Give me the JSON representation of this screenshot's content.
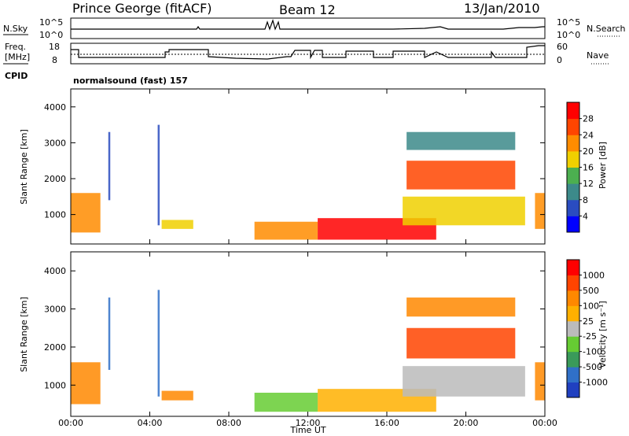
{
  "header": {
    "station": "Prince George (fitACF)",
    "beam": "Beam 12",
    "date": "13/Jan/2010"
  },
  "strip_labels": {
    "nsky": "N.Sky",
    "nsearch": "N.Search",
    "freq_line1": "Freq.",
    "freq_line2": "[MHz]",
    "nave": "Nave",
    "cpid": "CPID",
    "cpid_value": "normalsound (fast) 157",
    "nsky_ticks": [
      "10^5",
      "10^0"
    ],
    "nsearch_ticks": [
      "10^5",
      "10^0"
    ],
    "freq_ticks": [
      "18",
      "8"
    ],
    "nave_ticks": [
      "60",
      "0"
    ]
  },
  "colors": {
    "power": [
      "#0000ff",
      "#2a4cc0",
      "#3c8a8a",
      "#4caf50",
      "#f0d000",
      "#ff8c00",
      "#ff4500",
      "#ff0000"
    ],
    "velocity": [
      "#2040c0",
      "#3070c8",
      "#3a9a5a",
      "#66cc33",
      "#bbbbbb",
      "#ffb000",
      "#ff8800",
      "#ff4400",
      "#ff0000"
    ]
  },
  "chart_data": [
    {
      "type": "heatmap",
      "name": "power",
      "ylabel": "Slant Range [km]",
      "xlabel": "",
      "x_ticks": [
        "00:00",
        "04:00",
        "08:00",
        "12:00",
        "16:00",
        "20:00",
        "00:00"
      ],
      "y_ticks": [
        1000,
        2000,
        3000,
        4000
      ],
      "ylim": [
        180,
        4500
      ],
      "xlim": [
        0,
        24
      ],
      "colorbar_label": "Power [dB]",
      "colorbar_ticks": [
        "28",
        "24",
        "20",
        "16",
        "12",
        "8",
        "4"
      ],
      "regions": [
        {
          "t0": 0.0,
          "t1": 1.5,
          "r0": 500,
          "r1": 1600,
          "level": 5
        },
        {
          "t0": 1.9,
          "t1": 2.0,
          "r0": 1400,
          "r1": 3300,
          "level": 1
        },
        {
          "t0": 4.4,
          "t1": 4.5,
          "r0": 700,
          "r1": 3500,
          "level": 1
        },
        {
          "t0": 4.6,
          "t1": 6.2,
          "r0": 600,
          "r1": 850,
          "level": 4
        },
        {
          "t0": 9.3,
          "t1": 12.5,
          "r0": 300,
          "r1": 800,
          "level": 5
        },
        {
          "t0": 12.5,
          "t1": 18.5,
          "r0": 300,
          "r1": 900,
          "level": 7
        },
        {
          "t0": 16.8,
          "t1": 23.0,
          "r0": 700,
          "r1": 1500,
          "level": 4
        },
        {
          "t0": 17.0,
          "t1": 22.5,
          "r0": 1700,
          "r1": 2500,
          "level": 6
        },
        {
          "t0": 17.0,
          "t1": 22.5,
          "r0": 2800,
          "r1": 3300,
          "level": 2
        },
        {
          "t0": 23.5,
          "t1": 24.0,
          "r0": 600,
          "r1": 1600,
          "level": 5
        }
      ]
    },
    {
      "type": "heatmap",
      "name": "velocity",
      "ylabel": "Slant Range [km]",
      "xlabel": "Time UT",
      "x_ticks": [
        "00:00",
        "04:00",
        "08:00",
        "12:00",
        "16:00",
        "20:00",
        "00:00"
      ],
      "y_ticks": [
        1000,
        2000,
        3000,
        4000
      ],
      "ylim": [
        180,
        4500
      ],
      "xlim": [
        0,
        24
      ],
      "colorbar_label": "Velocity [m s⁻¹]",
      "colorbar_ticks": [
        "1000",
        "500",
        "100",
        "25",
        "-25",
        "-100",
        "-500",
        "-1000"
      ],
      "regions": [
        {
          "t0": 0.0,
          "t1": 1.5,
          "r0": 500,
          "r1": 1600,
          "level": 6
        },
        {
          "t0": 1.9,
          "t1": 2.0,
          "r0": 1400,
          "r1": 3300,
          "level": 1
        },
        {
          "t0": 4.4,
          "t1": 4.5,
          "r0": 700,
          "r1": 3500,
          "level": 1
        },
        {
          "t0": 4.6,
          "t1": 6.2,
          "r0": 600,
          "r1": 850,
          "level": 6
        },
        {
          "t0": 9.3,
          "t1": 12.5,
          "r0": 300,
          "r1": 800,
          "level": 3
        },
        {
          "t0": 12.5,
          "t1": 18.5,
          "r0": 300,
          "r1": 900,
          "level": 5
        },
        {
          "t0": 16.8,
          "t1": 23.0,
          "r0": 700,
          "r1": 1500,
          "level": 4
        },
        {
          "t0": 17.0,
          "t1": 22.5,
          "r0": 1700,
          "r1": 2500,
          "level": 7
        },
        {
          "t0": 17.0,
          "t1": 22.5,
          "r0": 2800,
          "r1": 3300,
          "level": 6
        },
        {
          "t0": 23.5,
          "t1": 24.0,
          "r0": 600,
          "r1": 1600,
          "level": 6
        }
      ]
    }
  ]
}
